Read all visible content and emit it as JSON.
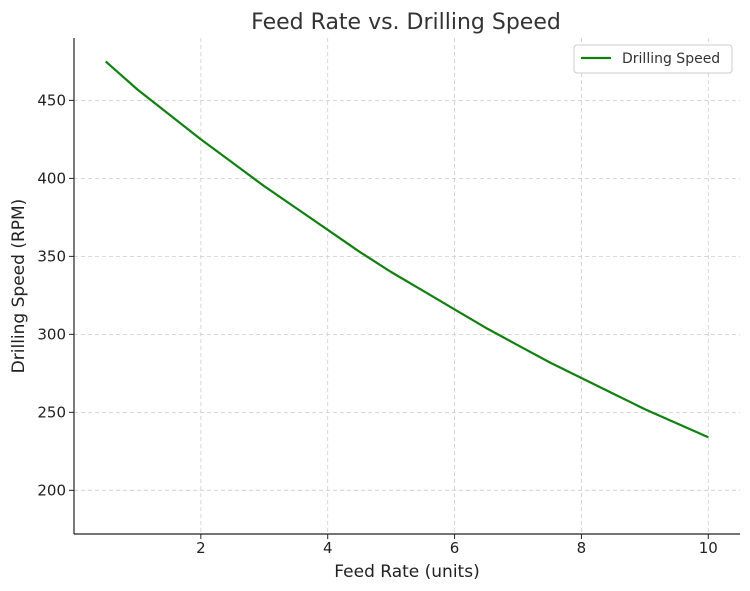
{
  "chart_data": {
    "type": "line",
    "title": "Feed Rate vs. Drilling Speed",
    "xlabel": "Feed Rate (units)",
    "ylabel": "Drilling Speed (RPM)",
    "xlim": [
      0,
      10.5
    ],
    "ylim": [
      172,
      490
    ],
    "xticks": [
      2,
      4,
      6,
      8,
      10
    ],
    "yticks": [
      200,
      250,
      300,
      350,
      400,
      450
    ],
    "grid": true,
    "legend_position": "top-right",
    "series": [
      {
        "name": "Drilling Speed",
        "color": "#108010",
        "x": [
          0.5,
          1,
          1.5,
          2,
          2.5,
          3,
          3.5,
          4,
          4.5,
          5,
          5.5,
          6,
          6.5,
          7,
          7.5,
          8,
          8.5,
          9,
          9.5,
          10
        ],
        "y": [
          475,
          457,
          441,
          425,
          410,
          395,
          381,
          367,
          353,
          340,
          328,
          316,
          304,
          293,
          282,
          272,
          262,
          252,
          243,
          234
        ]
      }
    ]
  }
}
